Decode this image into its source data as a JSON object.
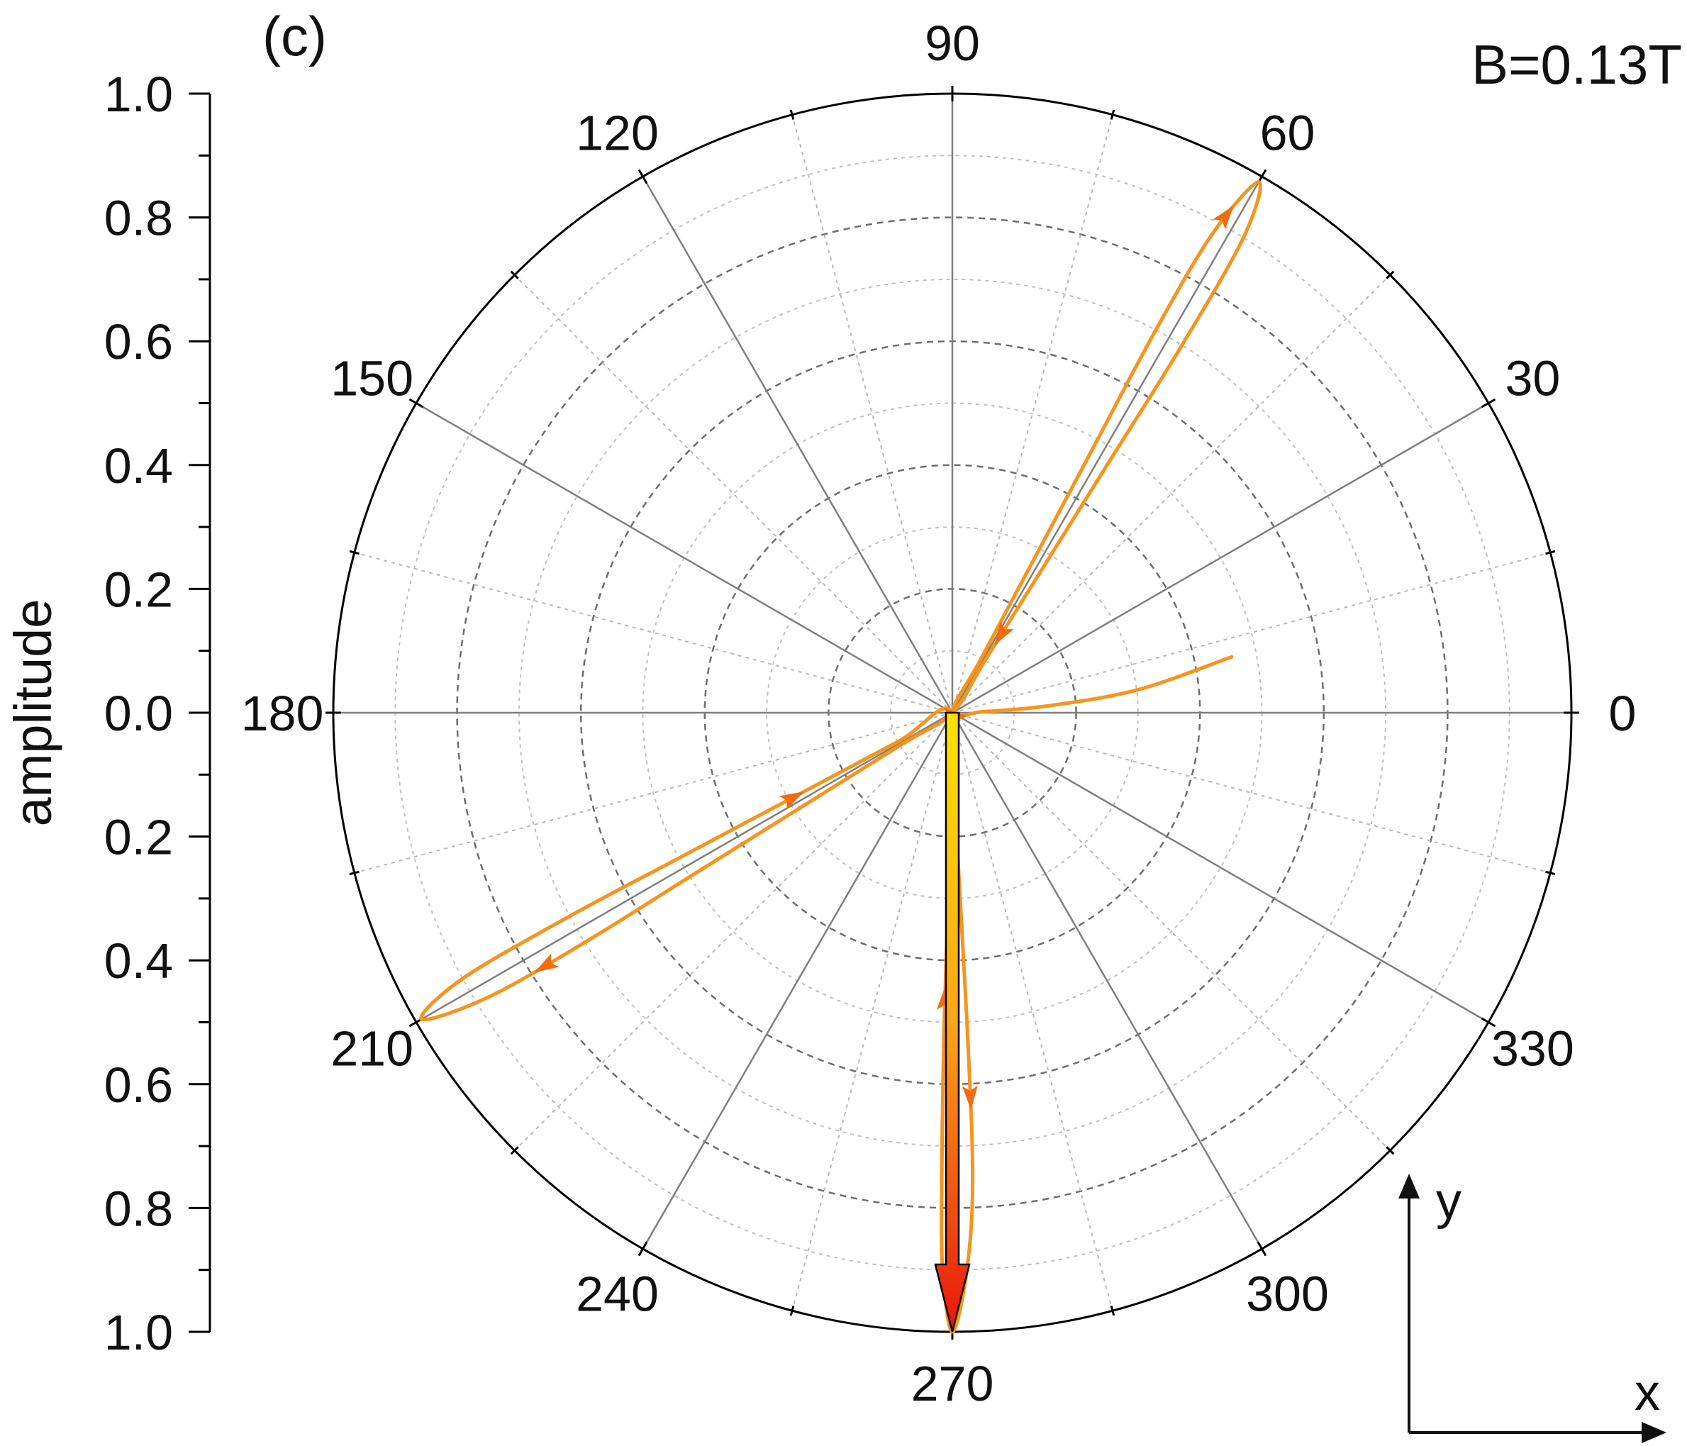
{
  "panel_label": "(c)",
  "condition_label": "B=0.13T",
  "coordinate_frame": {
    "x_label": "x",
    "y_label": "y"
  },
  "colors": {
    "trajectory": "#F7941D",
    "arrowhead": "#F26B0F",
    "vector_top": "#FFE100",
    "vector_bottom": "#E8160C",
    "radial_major": "#7f7f7f",
    "radial_minor": "#b8b8b8",
    "ring_major": "#6e6e6e",
    "ring_minor": "#c0c0c0"
  },
  "chart_data": {
    "type": "polar",
    "radial_axis": {
      "title": "amplitude",
      "range": [
        0,
        1.0
      ],
      "tick_labels_upper": [
        "1.0",
        "0.8",
        "0.6",
        "0.4",
        "0.2",
        "0.0"
      ],
      "tick_labels_lower": [
        "0.2",
        "0.4",
        "0.6",
        "0.8",
        "1.0"
      ],
      "major_ring_step": 0.2,
      "minor_ring_step": 0.1
    },
    "angular_axis": {
      "unit": "degrees",
      "tick_labels": [
        "0",
        "30",
        "60",
        "90",
        "120",
        "150",
        "180",
        "210",
        "240",
        "270",
        "300",
        "330"
      ],
      "major_step": 30,
      "minor_step": 15
    },
    "trajectory": {
      "direction_markers": 7,
      "points": [
        {
          "angle": 11.3,
          "amplitude": 0.46
        },
        {
          "angle": 7,
          "amplitude": 0.3
        },
        {
          "angle": 4,
          "amplitude": 0.15
        },
        {
          "angle": 2,
          "amplitude": 0.05
        },
        {
          "angle": 0,
          "amplitude": 0.0
        },
        {
          "angle": 62,
          "amplitude": 0.1
        },
        {
          "angle": 62,
          "amplitude": 0.3
        },
        {
          "angle": 62,
          "amplitude": 0.5
        },
        {
          "angle": 62,
          "amplitude": 0.7
        },
        {
          "angle": 61.5,
          "amplitude": 0.88
        },
        {
          "angle": 60,
          "amplitude": 0.99
        },
        {
          "angle": 58.5,
          "amplitude": 0.9
        },
        {
          "angle": 58,
          "amplitude": 0.7
        },
        {
          "angle": 58,
          "amplitude": 0.5
        },
        {
          "angle": 58,
          "amplitude": 0.3
        },
        {
          "angle": 58,
          "amplitude": 0.1
        },
        {
          "angle": 0,
          "amplitude": 0.0
        },
        {
          "angle": 212,
          "amplitude": 0.1
        },
        {
          "angle": 212,
          "amplitude": 0.3
        },
        {
          "angle": 212,
          "amplitude": 0.5
        },
        {
          "angle": 212,
          "amplitude": 0.7
        },
        {
          "angle": 211.5,
          "amplitude": 0.88
        },
        {
          "angle": 210,
          "amplitude": 0.99
        },
        {
          "angle": 208.5,
          "amplitude": 0.9
        },
        {
          "angle": 208,
          "amplitude": 0.7
        },
        {
          "angle": 208,
          "amplitude": 0.5
        },
        {
          "angle": 208,
          "amplitude": 0.3
        },
        {
          "angle": 208,
          "amplitude": 0.1
        },
        {
          "angle": 0,
          "amplitude": 0.0
        },
        {
          "angle": 272,
          "amplitude": 0.2
        },
        {
          "angle": 272.7,
          "amplitude": 0.5
        },
        {
          "angle": 272.5,
          "amplitude": 0.75
        },
        {
          "angle": 271.5,
          "amplitude": 0.9
        },
        {
          "angle": 270,
          "amplitude": 1.0
        },
        {
          "angle": 269,
          "amplitude": 0.9
        },
        {
          "angle": 268.7,
          "amplitude": 0.75
        },
        {
          "angle": 268.5,
          "amplitude": 0.5
        },
        {
          "angle": 269,
          "amplitude": 0.2
        },
        {
          "angle": 0,
          "amplitude": 0.0
        }
      ]
    },
    "vector": {
      "angle": 270,
      "amplitude": 1.0
    }
  }
}
